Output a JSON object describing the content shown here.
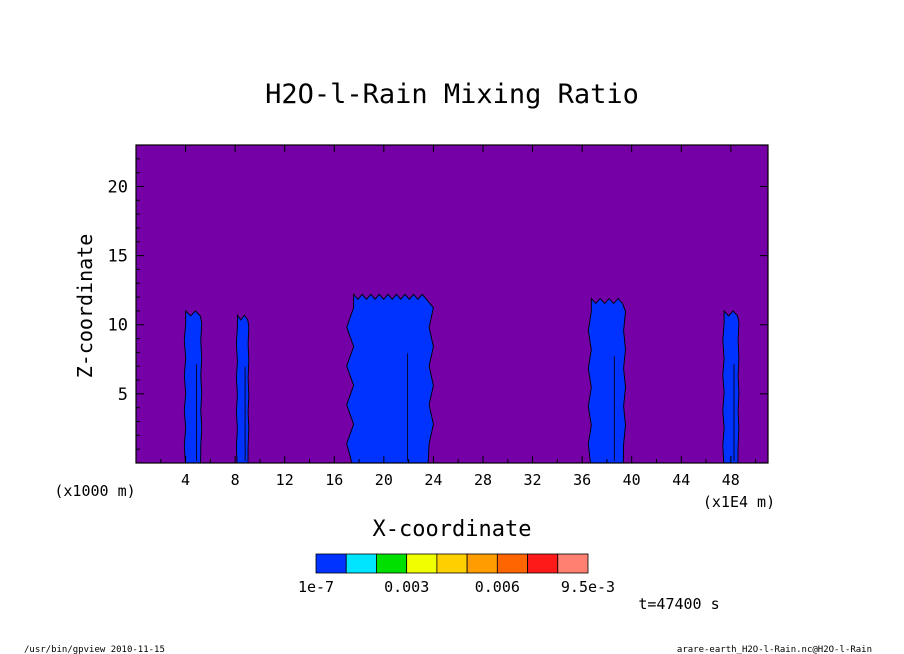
{
  "chart_data": {
    "type": "heatmap",
    "title": "H2O-l-Rain Mixing Ratio",
    "xlabel": "X-coordinate",
    "ylabel": "Z-coordinate",
    "x_unit": "(x1E4 m)",
    "y_unit": "(x1000 m)",
    "xlim": [
      0,
      51
    ],
    "ylim": [
      0,
      23
    ],
    "x_ticks": [
      "4",
      "8",
      "12",
      "16",
      "20",
      "24",
      "28",
      "32",
      "36",
      "40",
      "44",
      "48"
    ],
    "y_ticks": [
      "5",
      "10",
      "15",
      "20"
    ],
    "background_color": "#7400a6",
    "colorbar": {
      "colors": [
        "#0033ff",
        "#00e5ff",
        "#00e000",
        "#f0ff00",
        "#ffd000",
        "#ff9c00",
        "#ff6600",
        "#ff1a1a",
        "#ff7f70"
      ],
      "labels": [
        "1e-7",
        "0.003",
        "0.006",
        "9.5e-3"
      ]
    },
    "cells": [
      {
        "x_center": 4.6,
        "x_width": 1.4,
        "top": 11.0
      },
      {
        "x_center": 8.6,
        "x_width": 1.0,
        "top": 10.7
      },
      {
        "x_center": 20.5,
        "x_width": 7.0,
        "top": 12.2
      },
      {
        "x_center": 38.0,
        "x_width": 3.0,
        "top": 11.9
      },
      {
        "x_center": 48.0,
        "x_width": 1.3,
        "top": 11.0
      }
    ],
    "time": "t=47400 s"
  },
  "footer": {
    "left": "/usr/bin/gpview   2010-11-15",
    "right": "arare-earth_H2O-l-Rain.nc@H2O-l-Rain"
  }
}
